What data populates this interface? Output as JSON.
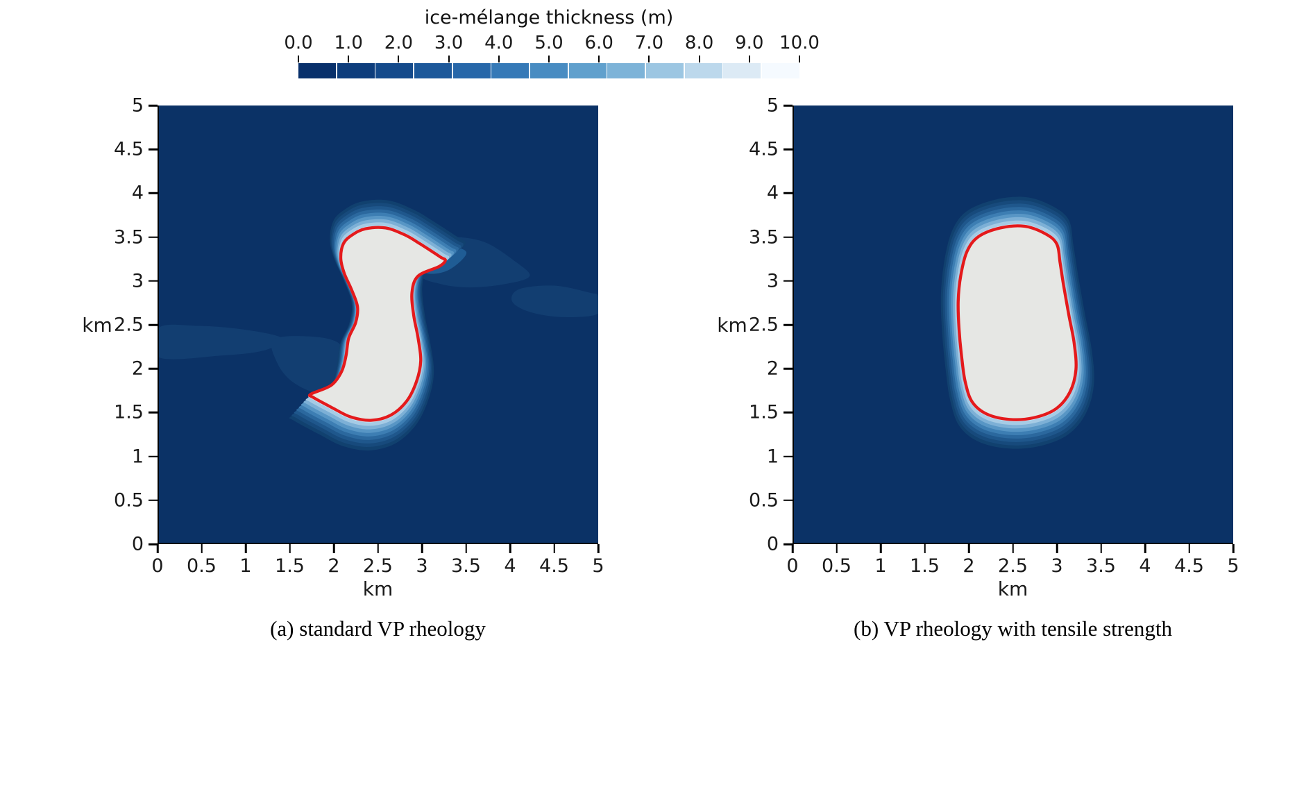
{
  "colorbar": {
    "title": "ice-mélange thickness (m)",
    "tick_labels": [
      "0.0",
      "1.0",
      "2.0",
      "3.0",
      "4.0",
      "5.0",
      "6.0",
      "7.0",
      "8.0",
      "9.0",
      "10.0"
    ],
    "colors": [
      "#08306b",
      "#0d3d7c",
      "#144a8b",
      "#1c589a",
      "#2767a9",
      "#3579b7",
      "#488cc2",
      "#60a0cd",
      "#7db3d8",
      "#9cc6e2",
      "#bcd8ec",
      "#dceaf5",
      "#f5faff"
    ]
  },
  "colors": {
    "background": "#0b3266",
    "patch_levels": [
      "#123e71",
      "#1f5c94"
    ],
    "bands": [
      "#11416f",
      "#174a7c",
      "#1f578c",
      "#2b689e",
      "#3d7eb3",
      "#5896c5",
      "#7db0d6",
      "#a6cbe5",
      "#cfe2f1"
    ],
    "center": "#e6e7e4",
    "red_contour": "#e41a1c"
  },
  "chart_data": [
    {
      "type": "contour",
      "title": "(a) standard VP rheology",
      "variable": "ice-mélange thickness (m)",
      "xlabel": "km",
      "ylabel": "km",
      "xlim": [
        0,
        5
      ],
      "ylim": [
        0,
        5
      ],
      "x_tick_labels": [
        "0",
        "0.5",
        "1",
        "1.5",
        "2",
        "2.5",
        "3",
        "3.5",
        "4",
        "4.5",
        "5"
      ],
      "y_tick_labels": [
        "0",
        "0.5",
        "1",
        "1.5",
        "2",
        "2.5",
        "3",
        "3.5",
        "4",
        "4.5",
        "5"
      ],
      "value_range_m": [
        0,
        10
      ],
      "background_thickness_m": 0,
      "center_thickness_m": 10,
      "gradient_halo_width_km": 0.18,
      "red_contour_km": [
        [
          2.2,
          3.52
        ],
        [
          2.35,
          3.59
        ],
        [
          2.58,
          3.6
        ],
        [
          2.8,
          3.52
        ],
        [
          2.97,
          3.42
        ],
        [
          3.2,
          3.27
        ],
        [
          3.26,
          3.23
        ],
        [
          3.19,
          3.16
        ],
        [
          2.95,
          3.05
        ],
        [
          2.88,
          2.86
        ],
        [
          2.9,
          2.6
        ],
        [
          2.95,
          2.34
        ],
        [
          2.98,
          2.08
        ],
        [
          2.93,
          1.84
        ],
        [
          2.82,
          1.62
        ],
        [
          2.64,
          1.46
        ],
        [
          2.41,
          1.4
        ],
        [
          2.18,
          1.44
        ],
        [
          1.98,
          1.54
        ],
        [
          1.76,
          1.66
        ],
        [
          1.73,
          1.7
        ],
        [
          1.96,
          1.8
        ],
        [
          2.08,
          1.96
        ],
        [
          2.13,
          2.14
        ],
        [
          2.16,
          2.34
        ],
        [
          2.24,
          2.52
        ],
        [
          2.26,
          2.7
        ],
        [
          2.19,
          2.9
        ],
        [
          2.11,
          3.08
        ],
        [
          2.07,
          3.25
        ],
        [
          2.1,
          3.42
        ]
      ],
      "thin_patches_km": [
        {
          "level": 0,
          "points": [
            [
              0,
              2.46
            ],
            [
              0.45,
              2.48
            ],
            [
              0.95,
              2.44
            ],
            [
              1.4,
              2.34
            ],
            [
              1.2,
              2.2
            ],
            [
              0.7,
              2.14
            ],
            [
              0,
              2.12
            ]
          ]
        },
        {
          "level": 0,
          "points": [
            [
              1.3,
              2.32
            ],
            [
              1.7,
              2.36
            ],
            [
              2.05,
              2.28
            ],
            [
              2.12,
              2.02
            ],
            [
              2.28,
              1.8
            ],
            [
              2.1,
              1.62
            ],
            [
              1.8,
              1.7
            ],
            [
              1.52,
              1.84
            ],
            [
              1.35,
              2.05
            ]
          ]
        },
        {
          "level": 0,
          "points": [
            [
              2.9,
              3.47
            ],
            [
              3.3,
              3.5
            ],
            [
              3.7,
              3.44
            ],
            [
              4.05,
              3.22
            ],
            [
              4.22,
              3.05
            ],
            [
              3.95,
              2.96
            ],
            [
              3.55,
              2.92
            ],
            [
              3.2,
              2.96
            ],
            [
              2.95,
              3.08
            ]
          ]
        },
        {
          "level": 1,
          "points": [
            [
              2.95,
              3.38
            ],
            [
              3.25,
              3.4
            ],
            [
              3.5,
              3.32
            ],
            [
              3.3,
              3.12
            ],
            [
              3.05,
              3.08
            ],
            [
              2.93,
              3.2
            ]
          ]
        },
        {
          "level": 0,
          "points": [
            [
              4.1,
              2.9
            ],
            [
              4.5,
              2.94
            ],
            [
              4.9,
              2.86
            ],
            [
              5.0,
              2.82
            ],
            [
              5.0,
              2.62
            ],
            [
              4.6,
              2.58
            ],
            [
              4.22,
              2.64
            ],
            [
              4.02,
              2.76
            ]
          ]
        }
      ]
    },
    {
      "type": "contour",
      "title": "(b) VP rheology with tensile strength",
      "variable": "ice-mélange thickness (m)",
      "xlabel": "km",
      "ylabel": "km",
      "xlim": [
        0,
        5
      ],
      "ylim": [
        0,
        5
      ],
      "x_tick_labels": [
        "0",
        "0.5",
        "1",
        "1.5",
        "2",
        "2.5",
        "3",
        "3.5",
        "4",
        "4.5",
        "5"
      ],
      "y_tick_labels": [
        "0",
        "0.5",
        "1",
        "1.5",
        "2",
        "2.5",
        "3",
        "3.5",
        "4",
        "4.5",
        "5"
      ],
      "value_range_m": [
        0,
        10
      ],
      "background_thickness_m": 0,
      "center_thickness_m": 10,
      "gradient_halo_width_km": 0.16,
      "red_contour_km": [
        [
          2.1,
          3.5
        ],
        [
          2.35,
          3.6
        ],
        [
          2.62,
          3.62
        ],
        [
          2.85,
          3.54
        ],
        [
          2.99,
          3.42
        ],
        [
          3.03,
          3.2
        ],
        [
          3.07,
          2.94
        ],
        [
          3.13,
          2.6
        ],
        [
          3.19,
          2.28
        ],
        [
          3.21,
          1.98
        ],
        [
          3.14,
          1.72
        ],
        [
          2.98,
          1.53
        ],
        [
          2.73,
          1.43
        ],
        [
          2.46,
          1.41
        ],
        [
          2.2,
          1.47
        ],
        [
          2.03,
          1.61
        ],
        [
          1.95,
          1.84
        ],
        [
          1.91,
          2.12
        ],
        [
          1.88,
          2.44
        ],
        [
          1.87,
          2.76
        ],
        [
          1.9,
          3.06
        ],
        [
          1.97,
          3.33
        ]
      ],
      "thin_patches_km": []
    }
  ]
}
